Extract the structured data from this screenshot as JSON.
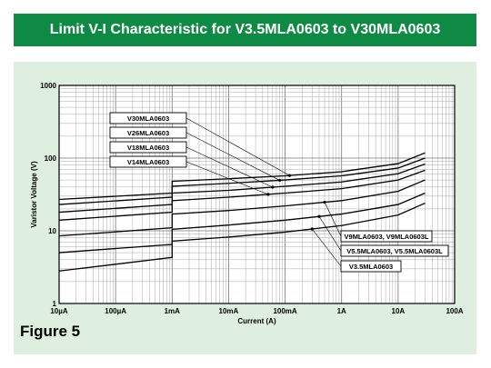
{
  "title": "Limit V-I Characteristic for V3.5MLA0603 to V30MLA0603",
  "figure_label": "Figure 5",
  "colors": {
    "title_bar": "#0f8a45",
    "panel": "#dfefdf",
    "plot_bg": "#ffffff",
    "lines": "#000000"
  },
  "chart_data": {
    "type": "line",
    "title": "Limit V-I Characteristic for V3.5MLA0603 to V30MLA0603",
    "xlabel": "Current (A)",
    "ylabel": "Varistor Voltage (V)",
    "x_scale": "log",
    "y_scale": "log",
    "xlim": [
      1e-05,
      100
    ],
    "ylim": [
      1,
      1000
    ],
    "grid": true,
    "x_ticks": [
      1e-05,
      0.0001,
      0.001,
      0.01,
      0.1,
      1,
      10,
      100
    ],
    "x_tick_labels": [
      "10µA",
      "100µA",
      "1mA",
      "10mA",
      "100mA",
      "1A",
      "10A",
      "100A"
    ],
    "y_ticks": [
      1,
      10,
      100,
      1000
    ],
    "y_tick_labels": [
      "1",
      "10",
      "100",
      "1000"
    ],
    "series": [
      {
        "name": "V30MLA0603",
        "x": [
          1e-05,
          0.001,
          0.001,
          0.01,
          0.1,
          1,
          10,
          30
        ],
        "y": [
          27,
          33,
          48,
          52,
          57,
          65,
          84,
          118
        ]
      },
      {
        "name": "V26MLA0603",
        "x": [
          1e-05,
          0.001,
          0.001,
          0.01,
          0.1,
          1,
          10,
          30
        ],
        "y": [
          23,
          29,
          41,
          45,
          50,
          57,
          73,
          100
        ]
      },
      {
        "name": "V18MLA0603",
        "x": [
          1e-05,
          0.001,
          0.001,
          0.01,
          0.1,
          1,
          10,
          30
        ],
        "y": [
          18,
          23,
          33,
          36,
          41,
          47,
          61,
          83
        ]
      },
      {
        "name": "V14MLA0603",
        "x": [
          1e-05,
          0.001,
          0.001,
          0.01,
          0.1,
          1,
          10,
          30
        ],
        "y": [
          14,
          18,
          26,
          29,
          33,
          38,
          50,
          68
        ]
      },
      {
        "name": "V9MLA0603, V9MLA0603L",
        "x": [
          1e-05,
          0.001,
          0.001,
          0.01,
          0.1,
          1,
          10,
          30
        ],
        "y": [
          8.5,
          11,
          17,
          19,
          22,
          26,
          35,
          50
        ]
      },
      {
        "name": "V5.5MLA0603, V5.5MLA0603L",
        "x": [
          1e-05,
          0.001,
          0.001,
          0.01,
          0.1,
          1,
          10,
          30
        ],
        "y": [
          5,
          6.5,
          10.5,
          12,
          14,
          17,
          23,
          33
        ]
      },
      {
        "name": "V3.5MLA0603",
        "x": [
          1e-05,
          0.001,
          0.001,
          0.01,
          0.1,
          1,
          10,
          30
        ],
        "y": [
          2.8,
          4.3,
          7.2,
          8.2,
          9.6,
          11.8,
          16.5,
          24
        ]
      }
    ]
  }
}
